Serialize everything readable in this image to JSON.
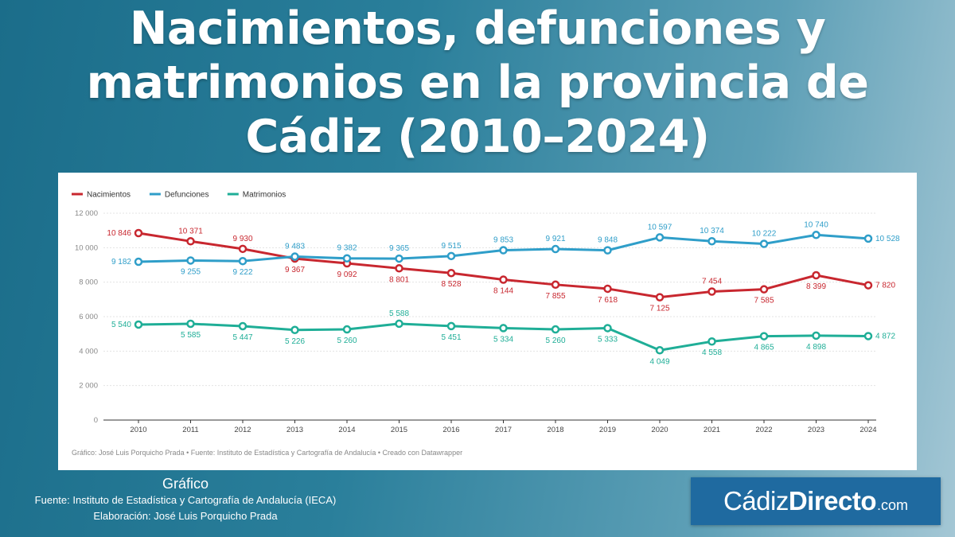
{
  "title_lines": [
    "Nacimientos, defunciones y",
    "matrimonios en la provincia de",
    "Cádiz (2010–2024)"
  ],
  "chart_data": {
    "type": "line",
    "x": [
      2010,
      2011,
      2012,
      2013,
      2014,
      2015,
      2016,
      2017,
      2018,
      2019,
      2020,
      2021,
      2022,
      2023,
      2024
    ],
    "series": [
      {
        "name": "Nacimientos",
        "color": "#c8272f",
        "values": [
          10846,
          10371,
          9930,
          9367,
          9092,
          8801,
          8528,
          8144,
          7855,
          7618,
          7125,
          7454,
          7585,
          8399,
          7820
        ],
        "labels": [
          "10 846",
          "10 371",
          "9 930",
          "9 367",
          "9 092",
          "8 801",
          "8 528",
          "8 144",
          "7 855",
          "7 618",
          "7 125",
          "7 454",
          "7 585",
          "8 399",
          "7 820"
        ]
      },
      {
        "name": "Defunciones",
        "color": "#2f9ec9",
        "values": [
          9182,
          9255,
          9222,
          9483,
          9382,
          9365,
          9515,
          9853,
          9921,
          9848,
          10597,
          10374,
          10222,
          10740,
          10528
        ],
        "labels": [
          "9 182",
          "9 255",
          "9 222",
          "9 483",
          "9 382",
          "9 365",
          "9 515",
          "9 853",
          "9 921",
          "9 848",
          "10 597",
          "10 374",
          "10 222",
          "10 740",
          "10 528"
        ]
      },
      {
        "name": "Matrimonios",
        "color": "#1fae97",
        "values": [
          5540,
          5585,
          5447,
          5226,
          5260,
          5588,
          5451,
          5334,
          5260,
          5333,
          4049,
          4558,
          4865,
          4898,
          4872
        ],
        "labels": [
          "5 540",
          "5 585",
          "5 447",
          "5 226",
          "5 260",
          "5 588",
          "5 451",
          "5 334",
          "5 260",
          "5 333",
          "4 049",
          "4 558",
          "4 865",
          "4 898",
          "4 872"
        ]
      }
    ],
    "yticks": [
      0,
      2000,
      4000,
      6000,
      8000,
      10000,
      12000
    ],
    "ytick_labels": [
      "0",
      "2 000",
      "4 000",
      "6 000",
      "8 000",
      "10 000",
      "12 000"
    ],
    "ylim": [
      0,
      12000
    ],
    "grid": true,
    "legend_position": "top-left",
    "credit": "Gráfico: José Luis Porquicho Prada • Fuente: Instituto de Estadística y Cartografía de Andalucía • Creado con Datawrapper"
  },
  "footer": {
    "heading": "Gráfico",
    "source": "Fuente:  Instituto de Estadística y Cartografía de Andalucía (IECA)",
    "author": "Elaboración: José Luis Porquicho Prada"
  },
  "logo": {
    "part1": "Cádiz",
    "part2": "Directo",
    "part3": ".com",
    "color": "#1f6aa0"
  }
}
